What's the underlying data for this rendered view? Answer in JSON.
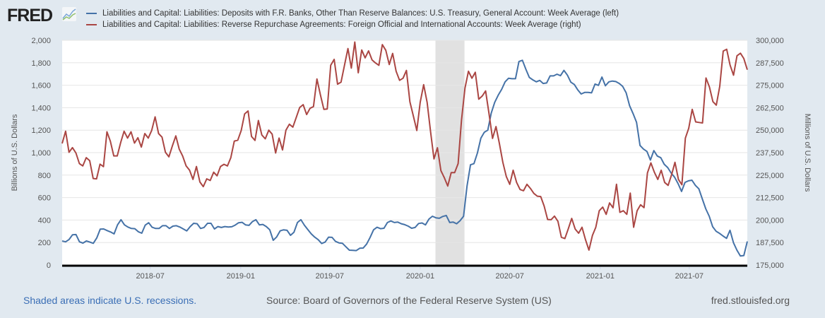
{
  "header": {
    "logo_text": "FRED",
    "legend": [
      {
        "label": "Liabilities and Capital: Liabilities: Deposits with F.R. Banks, Other Than Reserve Balances: U.S. Treasury, General Account: Week Average (left)",
        "color": "#4572a7"
      },
      {
        "label": "Liabilities and Capital: Liabilities: Reverse Repurchase Agreements: Foreign Official and International Accounts: Week Average (right)",
        "color": "#aa4643"
      }
    ]
  },
  "footer": {
    "recession_note": "Shaded areas indicate U.S. recessions.",
    "source": "Source: Board of Governors of the Federal Reserve System (US)",
    "site": "fred.stlouisfed.org"
  },
  "chart_data": {
    "type": "line",
    "title": "",
    "x_range": [
      "2018-01-03",
      "2021-10-27"
    ],
    "x_ticks": [
      {
        "date": "2018-07-01",
        "label": "2018-07"
      },
      {
        "date": "2019-01-01",
        "label": "2019-01"
      },
      {
        "date": "2019-07-01",
        "label": "2019-07"
      },
      {
        "date": "2020-01-01",
        "label": "2020-01"
      },
      {
        "date": "2020-07-01",
        "label": "2020-07"
      },
      {
        "date": "2021-01-01",
        "label": "2021-01"
      },
      {
        "date": "2021-07-01",
        "label": "2021-07"
      }
    ],
    "recessions": [
      {
        "start": "2020-02-01",
        "end": "2020-03-31"
      }
    ],
    "grid": true,
    "y_left": {
      "label": "Billions of U.S. Dollars",
      "range": [
        0,
        2000
      ],
      "ticks": [
        "0",
        "200",
        "400",
        "600",
        "800",
        "1,000",
        "1,200",
        "1,400",
        "1,600",
        "1,800",
        "2,000"
      ],
      "tick_values": [
        0,
        200,
        400,
        600,
        800,
        1000,
        1200,
        1400,
        1600,
        1800,
        2000
      ]
    },
    "y_right": {
      "label": "Millions of U.S. Dollars",
      "range": [
        175000,
        300000
      ],
      "ticks": [
        "175,000",
        "187,500",
        "200,000",
        "212,500",
        "225,000",
        "237,500",
        "250,000",
        "262,500",
        "275,000",
        "287,500",
        "300,000"
      ],
      "tick_values": [
        175000,
        187500,
        200000,
        212500,
        225000,
        237500,
        250000,
        262500,
        275000,
        287500,
        300000
      ]
    },
    "series": [
      {
        "name": "Deposits with F.R. Banks, Other Than Reserve Balances: U.S. Treasury, General Account: Week Average",
        "axis": "left",
        "frequency": "weekly",
        "color": "#4572a7",
        "values": [
          214,
          206,
          227,
          269,
          271,
          206,
          195,
          214,
          204,
          193,
          241,
          319,
          321,
          306,
          294,
          277,
          357,
          403,
          357,
          338,
          325,
          323,
          296,
          283,
          355,
          376,
          336,
          325,
          325,
          350,
          350,
          325,
          346,
          350,
          338,
          321,
          304,
          342,
          371,
          367,
          325,
          334,
          371,
          371,
          321,
          342,
          334,
          342,
          338,
          340,
          355,
          376,
          380,
          357,
          353,
          386,
          403,
          357,
          361,
          342,
          313,
          220,
          250,
          304,
          313,
          309,
          264,
          292,
          378,
          403,
          355,
          315,
          277,
          248,
          225,
          191,
          204,
          248,
          246,
          210,
          197,
          193,
          162,
          132,
          130,
          128,
          149,
          151,
          187,
          246,
          313,
          336,
          323,
          327,
          378,
          392,
          378,
          382,
          367,
          359,
          346,
          327,
          334,
          369,
          374,
          357,
          409,
          434,
          420,
          416,
          432,
          441,
          378,
          382,
          367,
          395,
          434,
          703,
          892,
          902,
          997,
          1129,
          1182,
          1200,
          1353,
          1448,
          1511,
          1563,
          1630,
          1662,
          1658,
          1658,
          1811,
          1822,
          1742,
          1669,
          1648,
          1630,
          1643,
          1616,
          1620,
          1683,
          1683,
          1698,
          1685,
          1732,
          1690,
          1627,
          1606,
          1559,
          1522,
          1536,
          1536,
          1532,
          1610,
          1599,
          1673,
          1595,
          1630,
          1637,
          1633,
          1616,
          1589,
          1532,
          1417,
          1347,
          1270,
          1064,
          1032,
          1011,
          934,
          1018,
          970,
          955,
          896,
          867,
          818,
          781,
          724,
          655,
          735,
          749,
          755,
          709,
          678,
          588,
          500,
          434,
          340,
          300,
          281,
          258,
          237,
          309,
          199,
          132,
          80,
          84,
          210
        ]
      },
      {
        "name": "Reverse Repurchase Agreements: Foreign Official and International Accounts: Week Average",
        "axis": "right",
        "frequency": "weekly",
        "color": "#aa4643",
        "values": [
          242600,
          249400,
          237700,
          240300,
          237300,
          231400,
          230100,
          234700,
          233000,
          223100,
          222900,
          231100,
          229700,
          249100,
          243900,
          235700,
          235700,
          243200,
          249400,
          245600,
          249100,
          242800,
          245800,
          240600,
          248100,
          245600,
          249800,
          257400,
          248100,
          246100,
          237700,
          235200,
          241200,
          246800,
          239500,
          235600,
          230100,
          227700,
          222600,
          229800,
          221200,
          218600,
          222900,
          222000,
          226600,
          224600,
          229800,
          231000,
          230100,
          234700,
          243900,
          244400,
          249800,
          259000,
          260700,
          246500,
          244300,
          255400,
          247300,
          245200,
          250000,
          247800,
          237300,
          245600,
          239000,
          250000,
          253300,
          251700,
          257200,
          262600,
          264200,
          258700,
          262200,
          263100,
          278500,
          269700,
          261600,
          261800,
          286100,
          289400,
          275600,
          276700,
          286100,
          295400,
          284500,
          299000,
          281900,
          294600,
          290200,
          294100,
          289100,
          287400,
          286100,
          297600,
          294400,
          286500,
          292700,
          282800,
          277700,
          278900,
          283200,
          265800,
          257900,
          249800,
          265500,
          275300,
          265500,
          249100,
          234000,
          240200,
          227500,
          223500,
          218900,
          226400,
          226400,
          231400,
          255700,
          273400,
          282800,
          278900,
          282200,
          267200,
          269000,
          271800,
          259000,
          245400,
          252000,
          242600,
          232100,
          224200,
          219900,
          227700,
          220900,
          217000,
          216300,
          219900,
          217600,
          214800,
          213300,
          213100,
          207800,
          200300,
          200200,
          202200,
          199300,
          190400,
          189700,
          195100,
          200900,
          195000,
          192700,
          196000,
          189100,
          183300,
          191400,
          196000,
          205200,
          207200,
          203200,
          209500,
          206800,
          219900,
          204300,
          205200,
          203200,
          215000,
          196000,
          205200,
          208500,
          206900,
          226200,
          231800,
          226600,
          222600,
          227700,
          220900,
          219300,
          225200,
          232100,
          222600,
          219600,
          245600,
          251100,
          261600,
          254600,
          254300,
          254000,
          279000,
          274000,
          265900,
          263900,
          274400,
          294000,
          295000,
          286200,
          280600,
          291400,
          292800,
          289800,
          283600
        ]
      }
    ]
  }
}
